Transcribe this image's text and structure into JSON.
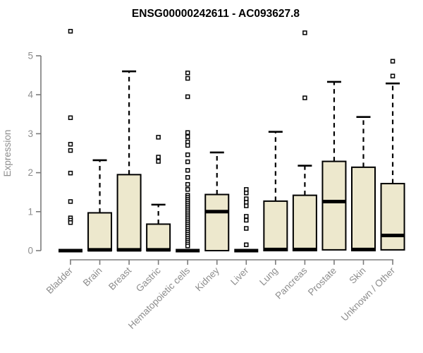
{
  "chart_data": {
    "type": "boxplot",
    "title": "ENSG00000242611 - AC093627.8",
    "ylabel": "Expression",
    "xlabel": "",
    "ylim": [
      0,
      5.7
    ],
    "yticks": [
      0,
      1,
      2,
      3,
      4,
      5
    ],
    "grid": false,
    "legend": "none",
    "categories": [
      "Bladder",
      "Brain",
      "Breast",
      "Gastric",
      "Hematopoietic cells",
      "Kidney",
      "Liver",
      "Lung",
      "Pancreas",
      "Prostate",
      "Skin",
      "Unknown / Other"
    ],
    "boxes": [
      {
        "label": "Bladder",
        "q1": 0,
        "median": 0,
        "q3": 0,
        "whisker_low": 0,
        "whisker_high": 0,
        "outliers": [
          5.63,
          3.41,
          2.73,
          2.57,
          1.99,
          1.26,
          0.84,
          0.78,
          0.72
        ]
      },
      {
        "label": "Brain",
        "q1": 0,
        "median": 0.02,
        "q3": 0.97,
        "whisker_low": 0,
        "whisker_high": 2.32,
        "outliers": []
      },
      {
        "label": "Breast",
        "q1": 0,
        "median": 0.02,
        "q3": 1.95,
        "whisker_low": 0,
        "whisker_high": 4.6,
        "outliers": []
      },
      {
        "label": "Gastric",
        "q1": 0,
        "median": 0.02,
        "q3": 0.68,
        "whisker_low": 0,
        "whisker_high": 1.18,
        "outliers": [
          2.91,
          2.4,
          2.29
        ]
      },
      {
        "label": "Hematopoietic cells",
        "q1": 0,
        "median": 0,
        "q3": 0,
        "whisker_low": 0,
        "whisker_high": 0,
        "outliers": [
          4.56,
          4.42,
          3.95,
          3.03,
          2.92,
          2.79,
          2.7,
          2.46,
          2.28,
          2.06,
          1.88,
          1.7,
          1.57,
          1.42,
          1.37,
          1.32,
          1.27,
          1.22,
          1.17,
          1.12,
          1.07,
          1.02,
          0.97,
          0.92,
          0.87,
          0.82,
          0.77,
          0.72,
          0.67,
          0.62,
          0.57,
          0.52,
          0.47,
          0.42,
          0.37,
          0.32,
          0.27,
          0.22,
          0.17,
          0.12
        ]
      },
      {
        "label": "Kidney",
        "q1": 0,
        "median": 1.0,
        "q3": 1.44,
        "whisker_low": 0,
        "whisker_high": 2.52,
        "outliers": []
      },
      {
        "label": "Liver",
        "q1": 0,
        "median": 0,
        "q3": 0,
        "whisker_low": 0,
        "whisker_high": 0,
        "outliers": [
          1.57,
          1.48,
          1.33,
          1.24,
          1.15,
          0.88,
          0.78,
          0.57,
          0.15
        ]
      },
      {
        "label": "Lung",
        "q1": 0,
        "median": 0.03,
        "q3": 1.27,
        "whisker_low": 0,
        "whisker_high": 3.05,
        "outliers": []
      },
      {
        "label": "Pancreas",
        "q1": 0,
        "median": 0.03,
        "q3": 1.42,
        "whisker_low": 0,
        "whisker_high": 2.18,
        "outliers": [
          5.59,
          3.92
        ]
      },
      {
        "label": "Prostate",
        "q1": 0.02,
        "median": 1.26,
        "q3": 2.29,
        "whisker_low": 0.02,
        "whisker_high": 4.33,
        "outliers": []
      },
      {
        "label": "Skin",
        "q1": 0,
        "median": 0.03,
        "q3": 2.14,
        "whisker_low": 0,
        "whisker_high": 3.43,
        "outliers": []
      },
      {
        "label": "Unknown / Other",
        "q1": 0.02,
        "median": 0.39,
        "q3": 1.72,
        "whisker_low": 0.02,
        "whisker_high": 4.29,
        "outliers": [
          4.86,
          4.48
        ]
      }
    ],
    "colors": {
      "box_fill": "#EDE8CD",
      "box_stroke": "#000000",
      "whisker": "#000000",
      "outlier_fill": "#FFFFFF",
      "axis": "#7b7b7b",
      "text": "#8d8d8d",
      "title": "#000000"
    }
  }
}
